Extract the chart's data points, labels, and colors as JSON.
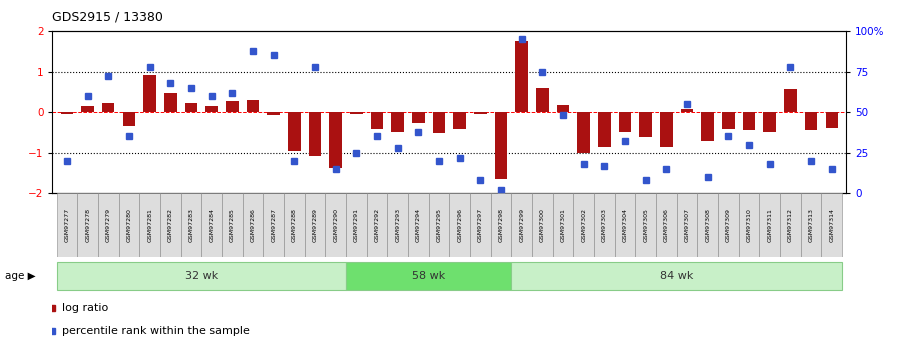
{
  "title": "GDS2915 / 13380",
  "samples": [
    "GSM97277",
    "GSM97278",
    "GSM97279",
    "GSM97280",
    "GSM97281",
    "GSM97282",
    "GSM97283",
    "GSM97284",
    "GSM97285",
    "GSM97286",
    "GSM97287",
    "GSM97288",
    "GSM97289",
    "GSM97290",
    "GSM97291",
    "GSM97292",
    "GSM97293",
    "GSM97294",
    "GSM97295",
    "GSM97296",
    "GSM97297",
    "GSM97298",
    "GSM97299",
    "GSM97300",
    "GSM97301",
    "GSM97302",
    "GSM97303",
    "GSM97304",
    "GSM97305",
    "GSM97306",
    "GSM97307",
    "GSM97308",
    "GSM97309",
    "GSM97310",
    "GSM97311",
    "GSM97312",
    "GSM97313",
    "GSM97314"
  ],
  "log_ratio": [
    -0.05,
    0.15,
    0.22,
    -0.35,
    0.92,
    0.48,
    0.22,
    0.15,
    0.28,
    0.3,
    -0.08,
    -0.95,
    -1.08,
    -1.38,
    -0.05,
    -0.42,
    -0.5,
    -0.28,
    -0.52,
    -0.42,
    -0.05,
    -1.65,
    1.75,
    0.6,
    0.18,
    -1.02,
    -0.85,
    -0.5,
    -0.62,
    -0.85,
    0.08,
    -0.7,
    -0.42,
    -0.45,
    -0.48,
    0.58,
    -0.45,
    -0.38
  ],
  "percentile_rank": [
    20,
    60,
    72,
    35,
    78,
    68,
    65,
    60,
    62,
    88,
    85,
    20,
    78,
    15,
    25,
    35,
    28,
    38,
    20,
    22,
    8,
    2,
    95,
    75,
    48,
    18,
    17,
    32,
    8,
    15,
    55,
    10,
    35,
    30,
    18,
    78,
    20,
    15
  ],
  "groups": [
    {
      "label": "32 wk",
      "start": 0,
      "end": 14,
      "color": "#c8f0c8"
    },
    {
      "label": "58 wk",
      "start": 14,
      "end": 22,
      "color": "#6ee06e"
    },
    {
      "label": "84 wk",
      "start": 22,
      "end": 38,
      "color": "#c8f0c8"
    }
  ],
  "bar_color": "#aa1111",
  "dot_color": "#3355cc",
  "ylim": [
    -2,
    2
  ],
  "y2lim": [
    0,
    100
  ],
  "background_color": "#ffffff",
  "legend_items": [
    {
      "label": "log ratio",
      "color": "#aa1111"
    },
    {
      "label": "percentile rank within the sample",
      "color": "#3355cc"
    }
  ]
}
